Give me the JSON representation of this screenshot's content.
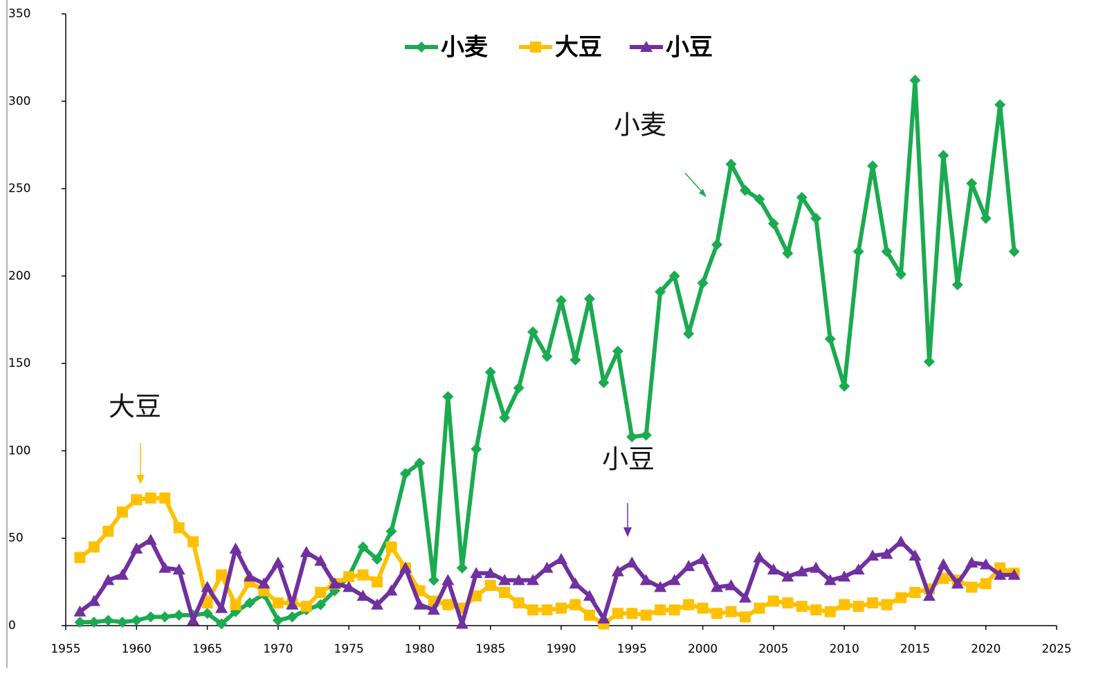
{
  "chart_data": {
    "type": "line",
    "x": [
      1956,
      1957,
      1958,
      1959,
      1960,
      1961,
      1962,
      1963,
      1964,
      1965,
      1966,
      1967,
      1968,
      1969,
      1970,
      1971,
      1972,
      1973,
      1974,
      1975,
      1976,
      1977,
      1978,
      1979,
      1980,
      1981,
      1982,
      1983,
      1984,
      1985,
      1986,
      1987,
      1988,
      1989,
      1990,
      1991,
      1992,
      1993,
      1994,
      1995,
      1996,
      1997,
      1998,
      1999,
      2000,
      2001,
      2002,
      2003,
      2004,
      2005,
      2006,
      2007,
      2008,
      2009,
      2010,
      2011,
      2012,
      2013,
      2014,
      2015,
      2016,
      2017,
      2018,
      2019,
      2020,
      2021,
      2022
    ],
    "series": [
      {
        "name": "小麦",
        "color": "#1aab50",
        "marker": "diamond",
        "values": [
          2,
          2,
          3,
          2,
          3,
          5,
          5,
          6,
          6,
          7,
          1,
          8,
          13,
          18,
          3,
          5,
          9,
          12,
          20,
          28,
          45,
          38,
          54,
          87,
          93,
          26,
          131,
          33,
          101,
          145,
          119,
          136,
          168,
          154,
          186,
          152,
          187,
          139,
          157,
          108,
          109,
          191,
          200,
          167,
          196,
          218,
          264,
          249,
          244,
          230,
          213,
          245,
          233,
          164,
          137,
          214,
          263,
          214,
          201,
          312,
          151,
          269,
          195,
          253,
          233,
          298,
          214
        ]
      },
      {
        "name": "大豆",
        "color": "#ffc000",
        "marker": "square",
        "values": [
          39,
          45,
          54,
          65,
          72,
          73,
          73,
          56,
          48,
          13,
          29,
          12,
          25,
          20,
          13,
          13,
          11,
          19,
          24,
          28,
          29,
          25,
          45,
          33,
          20,
          14,
          12,
          10,
          17,
          23,
          19,
          13,
          9,
          9,
          10,
          12,
          6,
          1,
          7,
          7,
          6,
          9,
          9,
          12,
          10,
          7,
          8,
          5,
          10,
          14,
          13,
          11,
          9,
          8,
          12,
          11,
          13,
          12,
          16,
          19,
          21,
          27,
          26,
          22,
          24,
          33,
          30
        ]
      },
      {
        "name": "小豆",
        "color": "#7030a0",
        "marker": "triangle",
        "values": [
          8,
          14,
          26,
          29,
          44,
          49,
          33,
          32,
          3,
          22,
          10,
          44,
          28,
          24,
          36,
          12,
          42,
          37,
          24,
          22,
          17,
          12,
          20,
          33,
          12,
          9,
          26,
          1,
          30,
          30,
          26,
          26,
          26,
          33,
          38,
          24,
          17,
          4,
          31,
          36,
          26,
          22,
          26,
          34,
          38,
          22,
          23,
          16,
          39,
          32,
          28,
          31,
          33,
          26,
          28,
          32,
          40,
          41,
          48,
          40,
          17,
          35,
          24,
          36,
          35,
          29,
          29
        ]
      }
    ],
    "xlim": [
      1955,
      2025
    ],
    "xticks": [
      1955,
      1960,
      1965,
      1970,
      1975,
      1980,
      1985,
      1990,
      1995,
      2000,
      2005,
      2010,
      2015,
      2020,
      2025
    ],
    "ylim": [
      0,
      350
    ],
    "yticks": [
      0,
      50,
      100,
      150,
      200,
      250,
      300,
      350
    ],
    "legend": "top",
    "annotations": [
      {
        "text": "小麦"
      },
      {
        "text": "大豆"
      },
      {
        "text": "小豆"
      }
    ]
  }
}
